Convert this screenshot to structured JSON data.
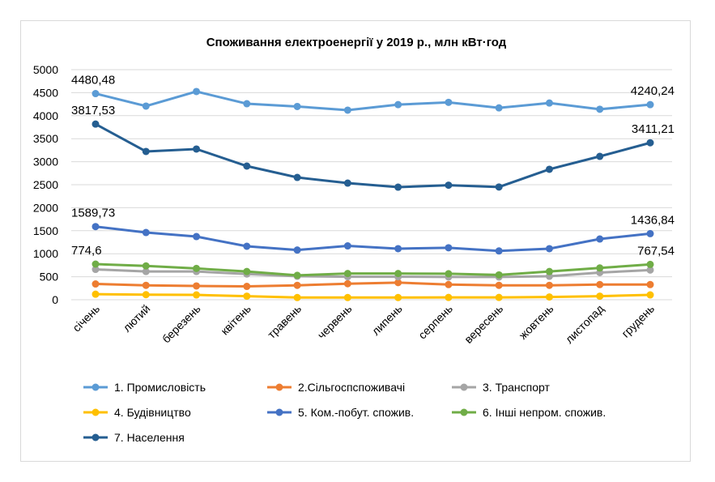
{
  "chart_data": {
    "type": "line",
    "title": "Споживання електроенергії у 2019 р., млн кВт·год",
    "categories": [
      "січень",
      "лютий",
      "березень",
      "квітень",
      "травень",
      "червень",
      "липень",
      "серпень",
      "вересень",
      "жовтень",
      "листопад",
      "грудень"
    ],
    "ylim": [
      0,
      5000
    ],
    "yticks": [
      0,
      500,
      1000,
      1500,
      2000,
      2500,
      3000,
      3500,
      4000,
      4500,
      5000
    ],
    "grid": true,
    "legend_position": "bottom",
    "series": [
      {
        "name": "1. Промисловість",
        "color": "#5b9bd5",
        "values": [
          4480.48,
          4208,
          4525,
          4260,
          4200,
          4120,
          4240,
          4290,
          4170,
          4275,
          4140,
          4240.24
        ],
        "labels": {
          "0": "4480,48",
          "11": "4240,24"
        }
      },
      {
        "name": "2.Сільгоспспоживачі",
        "color": "#ed7d31",
        "values": [
          343,
          313,
          300,
          290,
          313,
          348,
          373,
          330,
          313,
          313,
          330,
          330
        ]
      },
      {
        "name": "3. Транспорт",
        "color": "#a5a5a5",
        "values": [
          660,
          613,
          613,
          560,
          510,
          500,
          500,
          495,
          495,
          510,
          590,
          645
        ]
      },
      {
        "name": "4. Будівництво",
        "color": "#ffc000",
        "values": [
          120,
          110,
          105,
          78,
          48,
          48,
          48,
          50,
          50,
          60,
          78,
          105
        ]
      },
      {
        "name": "5. Ком.-побут. спожив.",
        "color": "#4472c4",
        "values": [
          1589.73,
          1461,
          1373,
          1162,
          1080,
          1170,
          1110,
          1130,
          1060,
          1110,
          1320,
          1436.84
        ],
        "labels": {
          "0": "1589,73",
          "11": "1436,84"
        }
      },
      {
        "name": "6. Інші непром. спожив.",
        "color": "#70ad47",
        "values": [
          774.6,
          735,
          680,
          613,
          530,
          570,
          570,
          565,
          540,
          613,
          690,
          767.54
        ],
        "labels": {
          "0": "774,6",
          "11": "767,54"
        }
      },
      {
        "name": "7. Населення",
        "color": "#255e91",
        "values": [
          3817.53,
          3222,
          3275,
          2905,
          2658,
          2535,
          2447,
          2490,
          2450,
          2835,
          3116,
          3411.21
        ],
        "labels": {
          "0": "3817,53",
          "11": "3411,21"
        }
      }
    ]
  }
}
